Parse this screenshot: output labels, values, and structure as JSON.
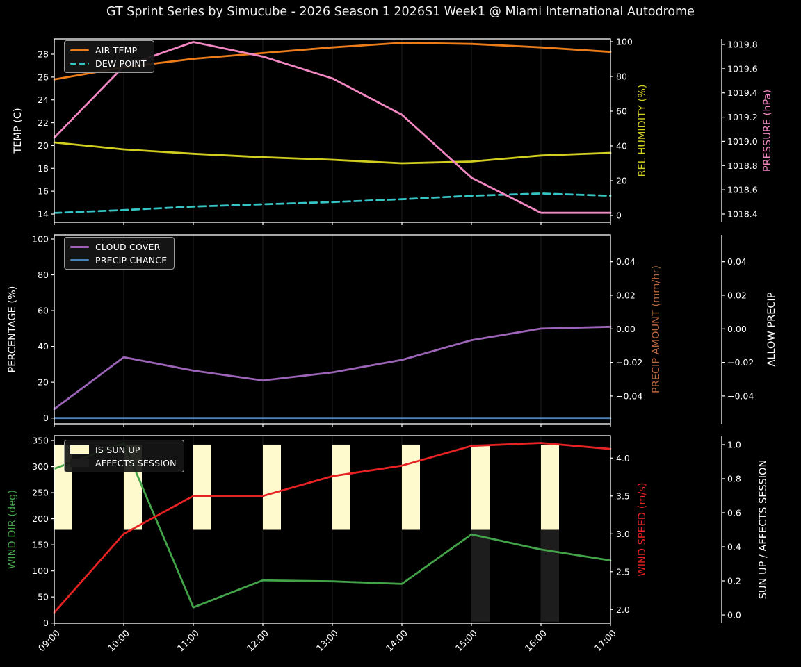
{
  "title": "GT Sprint Series by Simucube - 2026 Season 1 2026S1 Week1 @ Miami International Autodrome",
  "hours": [
    "09:00",
    "10:00",
    "11:00",
    "12:00",
    "13:00",
    "14:00",
    "15:00",
    "16:00",
    "17:00"
  ],
  "colors": {
    "background": "#000000",
    "text": "#ffffff",
    "spine": "#ffffff",
    "grid": "#1e1e1e",
    "legend_border": "#9b9b9b"
  },
  "chart_data": [
    {
      "type": "line",
      "left_axis": {
        "label": "TEMP (C)",
        "color": "#ffffff",
        "range": [
          13.27,
          29.34
        ],
        "tick_values": [
          14,
          16,
          18,
          20,
          22,
          24,
          26,
          28
        ],
        "tick_labels": [
          "14",
          "16",
          "18",
          "20",
          "22",
          "24",
          "26",
          "28"
        ]
      },
      "right_axis": {
        "label": "REL HUMIDITY (%)",
        "color": "#d2ce20",
        "range": [
          -4,
          101.6
        ],
        "tick_values": [
          0,
          20,
          40,
          60,
          80,
          100
        ],
        "tick_labels": [
          "0",
          "20",
          "40",
          "60",
          "80",
          "100"
        ]
      },
      "far_axis": {
        "label": "PRESSURE (hPa)",
        "color": "#f186c0",
        "range": [
          1018.331,
          1019.846
        ],
        "tick_values": [
          1018.4,
          1018.6,
          1018.8,
          1019.0,
          1019.2,
          1019.4,
          1019.6,
          1019.8
        ],
        "tick_labels": [
          "1018.4",
          "1018.6",
          "1018.8",
          "1019.0",
          "1019.2",
          "1019.4",
          "1019.6",
          "1019.8"
        ]
      },
      "series": [
        {
          "name": "AIR TEMP",
          "axis": "left",
          "color": "#ec7c1a",
          "dashed": false,
          "values": [
            25.8,
            26.85,
            27.6,
            28.1,
            28.6,
            29.0,
            28.9,
            28.6,
            28.2
          ]
        },
        {
          "name": "DEW POINT",
          "axis": "left",
          "color": "#35c3c3",
          "dashed": true,
          "values": [
            14.1,
            14.35,
            14.65,
            14.85,
            15.05,
            15.3,
            15.6,
            15.8,
            15.6
          ]
        },
        {
          "name": "REL HUMIDITY",
          "axis": "right",
          "color": "#d2ce20",
          "dashed": false,
          "values": [
            42,
            38,
            35.5,
            33.5,
            32,
            30,
            31,
            34.5,
            36
          ]
        },
        {
          "name": "PRESSURE",
          "axis": "far",
          "color": "#f186c0",
          "dashed": false,
          "values": [
            1019.03,
            1019.62,
            1019.82,
            1019.7,
            1019.52,
            1019.22,
            1018.7,
            1018.41,
            1018.41
          ]
        }
      ]
    },
    {
      "type": "line",
      "left_axis": {
        "label": "PERCENTAGE (%)",
        "color": "#ffffff",
        "range": [
          -3.22,
          102.33
        ],
        "tick_values": [
          0,
          20,
          40,
          60,
          80,
          100
        ],
        "tick_labels": [
          "0",
          "20",
          "40",
          "60",
          "80",
          "100"
        ]
      },
      "right_axis": {
        "label": "PRECIP AMOUNT (mm/hr)",
        "color": "#b9663c",
        "range": [
          -0.0566,
          0.056
        ],
        "tick_values": [
          0.04,
          0.02,
          0,
          -0.02,
          -0.04
        ],
        "tick_labels": [
          "0.04",
          "0.02",
          "0.00",
          "−0.02",
          "−0.04"
        ]
      },
      "far_axis": {
        "label": "ALLOW PRECIP",
        "color": "#ffffff",
        "range": [
          -0.0566,
          0.056
        ],
        "tick_values": [
          0.04,
          0.02,
          0,
          -0.02,
          -0.04
        ],
        "tick_labels": [
          "0.04",
          "0.02",
          "0.00",
          "−0.02",
          "−0.04"
        ]
      },
      "series": [
        {
          "name": "CLOUD COVER",
          "axis": "left",
          "color": "#9c64b8",
          "dashed": false,
          "values": [
            5,
            34,
            26.5,
            21,
            25.5,
            32.5,
            43.5,
            50,
            51
          ]
        },
        {
          "name": "PRECIP CHANCE",
          "axis": "left",
          "color": "#4a80b8",
          "dashed": false,
          "values": [
            0,
            0,
            0,
            0,
            0,
            0,
            0,
            0,
            0
          ]
        }
      ]
    },
    {
      "type": "line",
      "left_axis": {
        "label": "WIND DIR (deg)",
        "color": "#43a349",
        "range": [
          -0.4,
          359.4
        ],
        "tick_values": [
          0,
          50,
          100,
          150,
          200,
          250,
          300,
          350
        ],
        "tick_labels": [
          "0",
          "50",
          "100",
          "150",
          "200",
          "250",
          "300",
          "350"
        ]
      },
      "right_axis": {
        "label": "WIND SPEED (m/s)",
        "color": "#e62222",
        "range": [
          1.819,
          4.296
        ],
        "tick_values": [
          2.0,
          2.5,
          3.0,
          3.5,
          4.0
        ],
        "tick_labels": [
          "2.0",
          "2.5",
          "3.0",
          "3.5",
          "4.0"
        ]
      },
      "far_axis": {
        "label": "SUN UP / AFFECTS SESSION",
        "color": "#ffffff",
        "range": [
          -0.0487,
          1.0528
        ],
        "tick_values": [
          0,
          0.2,
          0.4,
          0.6,
          0.8,
          1.0
        ],
        "tick_labels": [
          "0.0",
          "0.2",
          "0.4",
          "0.6",
          "0.8",
          "1.0"
        ]
      },
      "series": [
        {
          "name": "WIND DIR",
          "axis": "left",
          "color": "#43a349",
          "dashed": false,
          "values": [
            296,
            345,
            30,
            82,
            80,
            75,
            170,
            141,
            120
          ]
        },
        {
          "name": "WIND SPEED",
          "axis": "right",
          "color": "#e62222",
          "dashed": false,
          "values": [
            1.96,
            3.0,
            3.5,
            3.5,
            3.76,
            3.9,
            4.16,
            4.2,
            4.12
          ]
        }
      ],
      "bars": [
        {
          "label": "IS SUN UP",
          "color": "#fffacd",
          "span": [
            0.5,
            1.0
          ],
          "values": [
            1,
            1,
            1,
            1,
            1,
            1,
            1,
            1,
            0
          ]
        },
        {
          "label": "AFFECTS SESSION",
          "color": "#1d1d1d",
          "span": [
            -0.04,
            0.5
          ],
          "values": [
            0,
            0,
            0,
            0,
            0,
            0,
            1,
            1,
            0
          ]
        }
      ]
    }
  ]
}
